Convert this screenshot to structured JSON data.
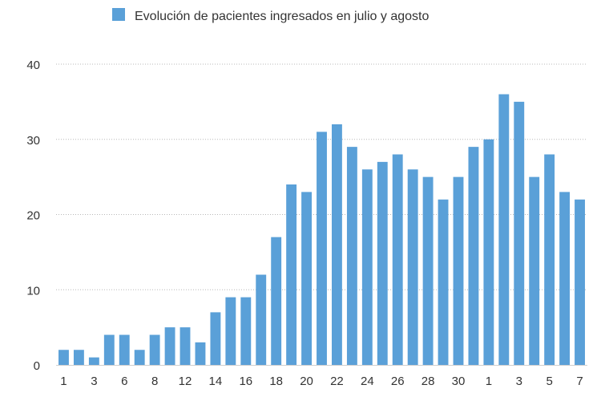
{
  "chart_data": {
    "type": "bar",
    "legend": {
      "label": "Evolución de pacientes ingresados en julio y agosto",
      "position": "top-center"
    },
    "series": [
      {
        "name": "Evolución de pacientes ingresados en julio y agosto",
        "color": "#5aa0d8",
        "values": [
          2,
          2,
          1,
          4,
          4,
          2,
          4,
          5,
          5,
          3,
          7,
          9,
          9,
          12,
          17,
          24,
          23,
          31,
          32,
          29,
          26,
          27,
          28,
          26,
          25,
          22,
          25,
          29,
          30,
          36,
          35,
          25,
          28,
          23,
          22
        ]
      }
    ],
    "categories": [
      "1",
      "",
      "3",
      "",
      "6",
      "",
      "8",
      "",
      "12",
      "",
      "14",
      "",
      "16",
      "",
      "18",
      "",
      "20",
      "",
      "22",
      "",
      "24",
      "",
      "26",
      "",
      "28",
      "",
      "30",
      "",
      "1",
      "",
      "3",
      "",
      "5",
      "",
      "7"
    ],
    "x_tick_labels": [
      "1",
      "3",
      "6",
      "8",
      "12",
      "14",
      "16",
      "18",
      "20",
      "22",
      "24",
      "26",
      "28",
      "30",
      "1",
      "3",
      "5",
      "7"
    ],
    "y_ticks": [
      0,
      10,
      20,
      30,
      40
    ],
    "ylim": [
      0,
      40
    ],
    "grid": "horizontal-dotted",
    "colors": {
      "bar": "#5aa0d8",
      "grid": "#b8b8b8",
      "text": "#333333"
    }
  }
}
